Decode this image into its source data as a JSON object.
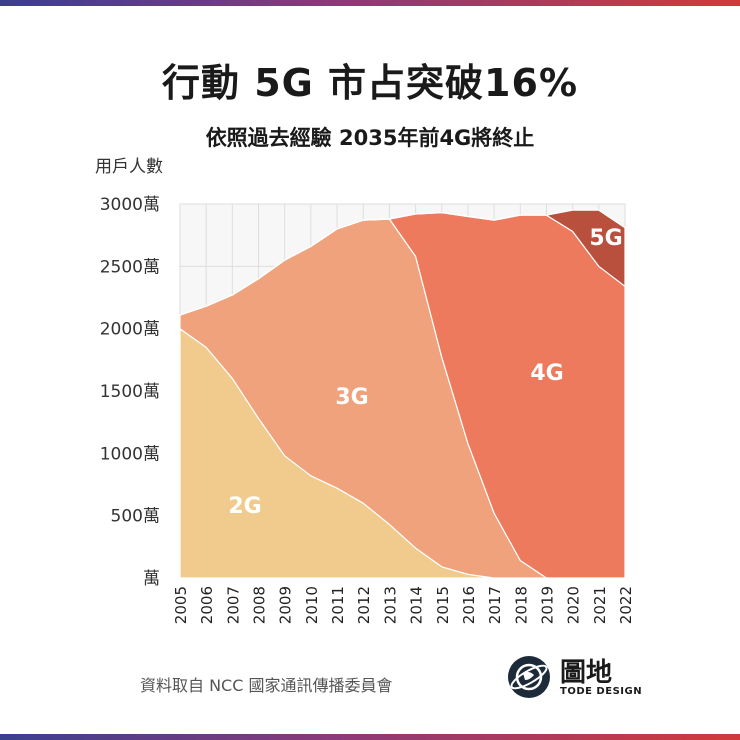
{
  "header": {
    "title": "行動 5G 市占突破16%",
    "subtitle": "依照過去經驗 2035年前4G將終止"
  },
  "footer": {
    "source": "資料取自 NCC 國家通訊傳播委員會"
  },
  "logo": {
    "name": "圖地",
    "sub": "TODE DESIGN"
  },
  "colors": {
    "2G": "#f0cb8d",
    "3G": "#f0a27c",
    "4G": "#ee7a5e",
    "5G": "#b9503d"
  },
  "chart_data": {
    "type": "area",
    "stacked": true,
    "ylabel": "用戶人數",
    "ylim": [
      0,
      3000
    ],
    "yticks": [
      0,
      500,
      1000,
      1500,
      2000,
      2500,
      3000
    ],
    "yticklabels": [
      "萬",
      "500萬",
      "1000萬",
      "1500萬",
      "2000萬",
      "2500萬",
      "3000萬"
    ],
    "x": [
      "2005",
      "2006",
      "2007",
      "2008",
      "2009",
      "2010",
      "2011",
      "2012",
      "2013",
      "2014",
      "2015",
      "2016",
      "2017",
      "2018",
      "2019",
      "2020",
      "2021",
      "2022"
    ],
    "grid": true,
    "series": [
      {
        "name": "2G",
        "values": [
          2000,
          1850,
          1600,
          1280,
          980,
          820,
          720,
          600,
          430,
          240,
          90,
          30,
          0,
          0,
          0,
          0,
          0,
          0
        ]
      },
      {
        "name": "3G",
        "values": [
          110,
          330,
          670,
          1120,
          1570,
          1840,
          2080,
          2270,
          2450,
          2340,
          1680,
          1050,
          520,
          140,
          0,
          0,
          0,
          0
        ]
      },
      {
        "name": "4G",
        "values": [
          0,
          0,
          0,
          0,
          0,
          0,
          0,
          0,
          0,
          340,
          1160,
          1820,
          2350,
          2770,
          2910,
          2780,
          2500,
          2340
        ]
      },
      {
        "name": "5G",
        "values": [
          0,
          0,
          0,
          0,
          0,
          0,
          0,
          0,
          0,
          0,
          0,
          0,
          0,
          0,
          0,
          170,
          450,
          470
        ]
      }
    ]
  }
}
